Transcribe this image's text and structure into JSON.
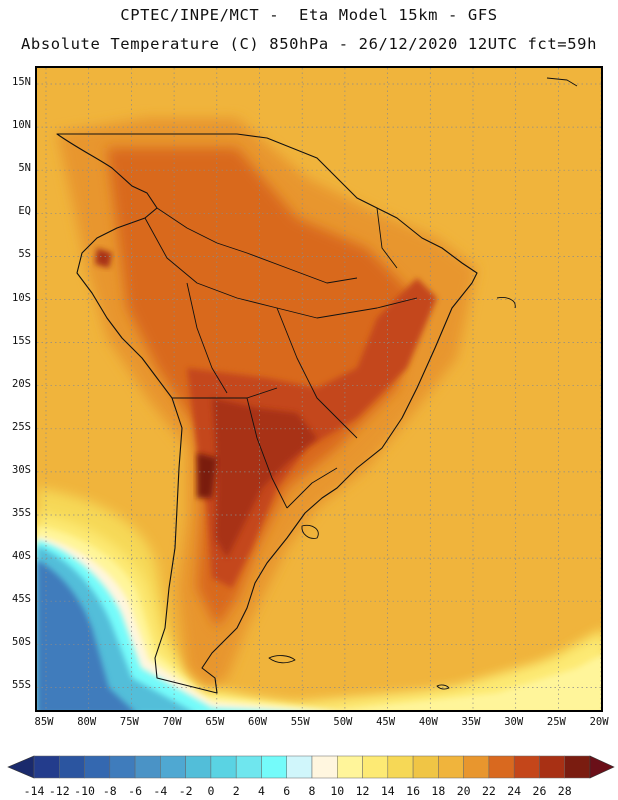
{
  "title": {
    "line1": "CPTEC/INPE/MCT -  Eta Model 15km - GFS",
    "line2": "Absolute Temperature (C) 850hPa - 26/12/2020 12UTC fct=59h"
  },
  "map": {
    "lat_labels": [
      "15N",
      "10N",
      "5N",
      "EQ",
      "5S",
      "10S",
      "15S",
      "20S",
      "25S",
      "30S",
      "35S",
      "40S",
      "45S",
      "50S",
      "55S"
    ],
    "lon_labels": [
      "85W",
      "80W",
      "75W",
      "70W",
      "65W",
      "60W",
      "55W",
      "50W",
      "45W",
      "40W",
      "35W",
      "30W",
      "25W",
      "20W"
    ]
  },
  "colorbar": {
    "labels": [
      "-14",
      "-12",
      "-10",
      "-8",
      "-6",
      "-4",
      "-2",
      "0",
      "2",
      "4",
      "6",
      "8",
      "10",
      "12",
      "14",
      "16",
      "18",
      "20",
      "22",
      "24",
      "26",
      "28"
    ],
    "colors": [
      "#233c8c",
      "#2b55a0",
      "#3468b0",
      "#3f7cbc",
      "#4a93c6",
      "#4fa8d2",
      "#52bed9",
      "#5ad3e3",
      "#6fe6ee",
      "#74fbfa",
      "#d0f6fb",
      "#fff6df",
      "#fff59a",
      "#fdea74",
      "#f6d856",
      "#f0c545",
      "#f0b43c",
      "#e8962e",
      "#d9691f",
      "#c4461a",
      "#a83014",
      "#7a1c10"
    ],
    "arrow_low": "#1a2a6c",
    "arrow_high": "#6a0f18"
  },
  "field_colors": {
    "ocean_warm": "#f0b43c",
    "land_base": "#e8962e",
    "land_hot": "#d9691f",
    "land_hotter": "#c4461a",
    "land_hottest": "#a83014",
    "peak": "#7a1c10",
    "cool1": "#f6d856",
    "cool2": "#fdea74",
    "cool3": "#fff59a",
    "cool4": "#fff6df",
    "cold1": "#74fbfa",
    "cold2": "#52bed9",
    "cold3": "#3f7cbc"
  }
}
